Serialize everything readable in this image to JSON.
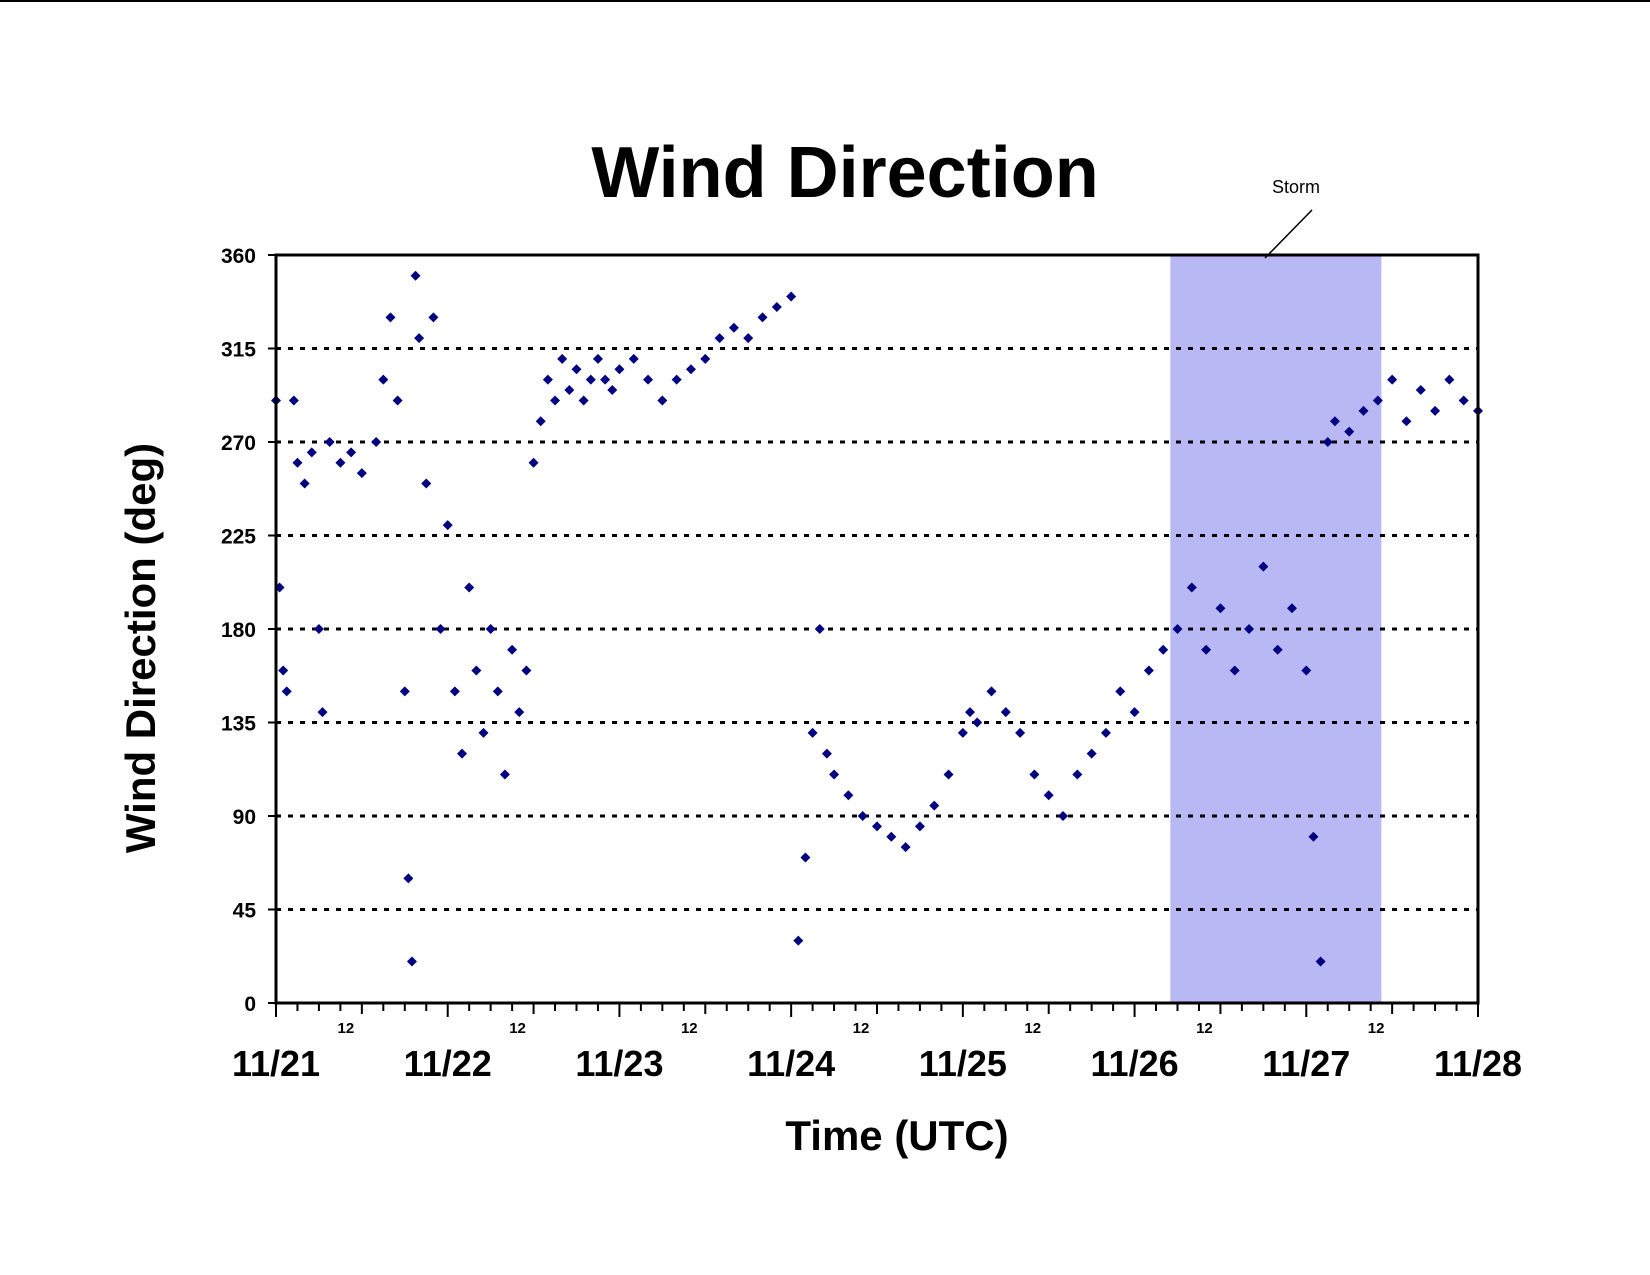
{
  "chart_data": {
    "type": "scatter",
    "title": "Wind Direction",
    "xlabel": "Time (UTC)",
    "ylabel": "Wind Direction (deg)",
    "ylim": [
      0,
      360
    ],
    "yticks": [
      0,
      45,
      90,
      135,
      180,
      225,
      270,
      315,
      360
    ],
    "xlim": [
      "11/21 00:00",
      "11/28 00:00"
    ],
    "x_major_labels": [
      "11/21",
      "11/22",
      "11/23",
      "11/24",
      "11/25",
      "11/26",
      "11/27",
      "11/28"
    ],
    "x_minor_label": "12",
    "grid": "horizontal dotted",
    "marker": "diamond",
    "marker_color": "#000080",
    "shaded_region": {
      "label": "Storm",
      "start": "11/26 05:00",
      "end": "11/27 10:30",
      "color": "#b8b8f5"
    },
    "series": [
      {
        "points": [
          [
            "11/21 00:00",
            290
          ],
          [
            "11/21 00:30",
            200
          ],
          [
            "11/21 01:00",
            160
          ],
          [
            "11/21 01:30",
            150
          ],
          [
            "11/21 02:30",
            290
          ],
          [
            "11/21 03:00",
            260
          ],
          [
            "11/21 04:00",
            250
          ],
          [
            "11/21 05:00",
            265
          ],
          [
            "11/21 06:00",
            180
          ],
          [
            "11/21 06:30",
            140
          ],
          [
            "11/21 07:30",
            270
          ],
          [
            "11/21 09:00",
            260
          ],
          [
            "11/21 10:30",
            265
          ],
          [
            "11/21 12:00",
            255
          ],
          [
            "11/21 14:00",
            270
          ],
          [
            "11/21 15:00",
            300
          ],
          [
            "11/21 16:00",
            330
          ],
          [
            "11/21 17:00",
            290
          ],
          [
            "11/21 18:00",
            150
          ],
          [
            "11/21 18:30",
            60
          ],
          [
            "11/21 19:00",
            20
          ],
          [
            "11/21 19:30",
            350
          ],
          [
            "11/21 20:00",
            320
          ],
          [
            "11/21 21:00",
            250
          ],
          [
            "11/21 22:00",
            330
          ],
          [
            "11/21 23:00",
            180
          ],
          [
            "11/22 00:00",
            230
          ],
          [
            "11/22 01:00",
            150
          ],
          [
            "11/22 02:00",
            120
          ],
          [
            "11/22 03:00",
            200
          ],
          [
            "11/22 04:00",
            160
          ],
          [
            "11/22 05:00",
            130
          ],
          [
            "11/22 06:00",
            180
          ],
          [
            "11/22 07:00",
            150
          ],
          [
            "11/22 08:00",
            110
          ],
          [
            "11/22 09:00",
            170
          ],
          [
            "11/22 10:00",
            140
          ],
          [
            "11/22 11:00",
            160
          ],
          [
            "11/22 12:00",
            260
          ],
          [
            "11/22 13:00",
            280
          ],
          [
            "11/22 14:00",
            300
          ],
          [
            "11/22 15:00",
            290
          ],
          [
            "11/22 16:00",
            310
          ],
          [
            "11/22 17:00",
            295
          ],
          [
            "11/22 18:00",
            305
          ],
          [
            "11/22 19:00",
            290
          ],
          [
            "11/22 20:00",
            300
          ],
          [
            "11/22 21:00",
            310
          ],
          [
            "11/22 22:00",
            300
          ],
          [
            "11/22 23:00",
            295
          ],
          [
            "11/23 00:00",
            305
          ],
          [
            "11/23 02:00",
            310
          ],
          [
            "11/23 04:00",
            300
          ],
          [
            "11/23 06:00",
            290
          ],
          [
            "11/23 08:00",
            300
          ],
          [
            "11/23 10:00",
            305
          ],
          [
            "11/23 12:00",
            310
          ],
          [
            "11/23 14:00",
            320
          ],
          [
            "11/23 16:00",
            325
          ],
          [
            "11/23 18:00",
            320
          ],
          [
            "11/23 20:00",
            330
          ],
          [
            "11/23 22:00",
            335
          ],
          [
            "11/24 00:00",
            340
          ],
          [
            "11/24 01:00",
            30
          ],
          [
            "11/24 02:00",
            70
          ],
          [
            "11/24 03:00",
            130
          ],
          [
            "11/24 04:00",
            180
          ],
          [
            "11/24 05:00",
            120
          ],
          [
            "11/24 06:00",
            110
          ],
          [
            "11/24 08:00",
            100
          ],
          [
            "11/24 10:00",
            90
          ],
          [
            "11/24 12:00",
            85
          ],
          [
            "11/24 14:00",
            80
          ],
          [
            "11/24 16:00",
            75
          ],
          [
            "11/24 18:00",
            85
          ],
          [
            "11/24 20:00",
            95
          ],
          [
            "11/24 22:00",
            110
          ],
          [
            "11/25 00:00",
            130
          ],
          [
            "11/25 01:00",
            140
          ],
          [
            "11/25 02:00",
            135
          ],
          [
            "11/25 04:00",
            150
          ],
          [
            "11/25 06:00",
            140
          ],
          [
            "11/25 08:00",
            130
          ],
          [
            "11/25 10:00",
            110
          ],
          [
            "11/25 12:00",
            100
          ],
          [
            "11/25 14:00",
            90
          ],
          [
            "11/25 16:00",
            110
          ],
          [
            "11/25 18:00",
            120
          ],
          [
            "11/25 20:00",
            130
          ],
          [
            "11/25 22:00",
            150
          ],
          [
            "11/26 00:00",
            140
          ],
          [
            "11/26 02:00",
            160
          ],
          [
            "11/26 04:00",
            170
          ],
          [
            "11/26 06:00",
            180
          ],
          [
            "11/26 08:00",
            200
          ],
          [
            "11/26 10:00",
            170
          ],
          [
            "11/26 12:00",
            190
          ],
          [
            "11/26 14:00",
            160
          ],
          [
            "11/26 16:00",
            180
          ],
          [
            "11/26 18:00",
            210
          ],
          [
            "11/26 20:00",
            170
          ],
          [
            "11/26 22:00",
            190
          ],
          [
            "11/27 00:00",
            160
          ],
          [
            "11/27 01:00",
            80
          ],
          [
            "11/27 02:00",
            20
          ],
          [
            "11/27 03:00",
            270
          ],
          [
            "11/27 04:00",
            280
          ],
          [
            "11/27 06:00",
            275
          ],
          [
            "11/27 08:00",
            285
          ],
          [
            "11/27 10:00",
            290
          ],
          [
            "11/27 12:00",
            300
          ],
          [
            "11/27 14:00",
            280
          ],
          [
            "11/27 16:00",
            295
          ],
          [
            "11/27 18:00",
            285
          ],
          [
            "11/27 20:00",
            300
          ],
          [
            "11/27 22:00",
            290
          ],
          [
            "11/28 00:00",
            285
          ]
        ]
      }
    ]
  }
}
